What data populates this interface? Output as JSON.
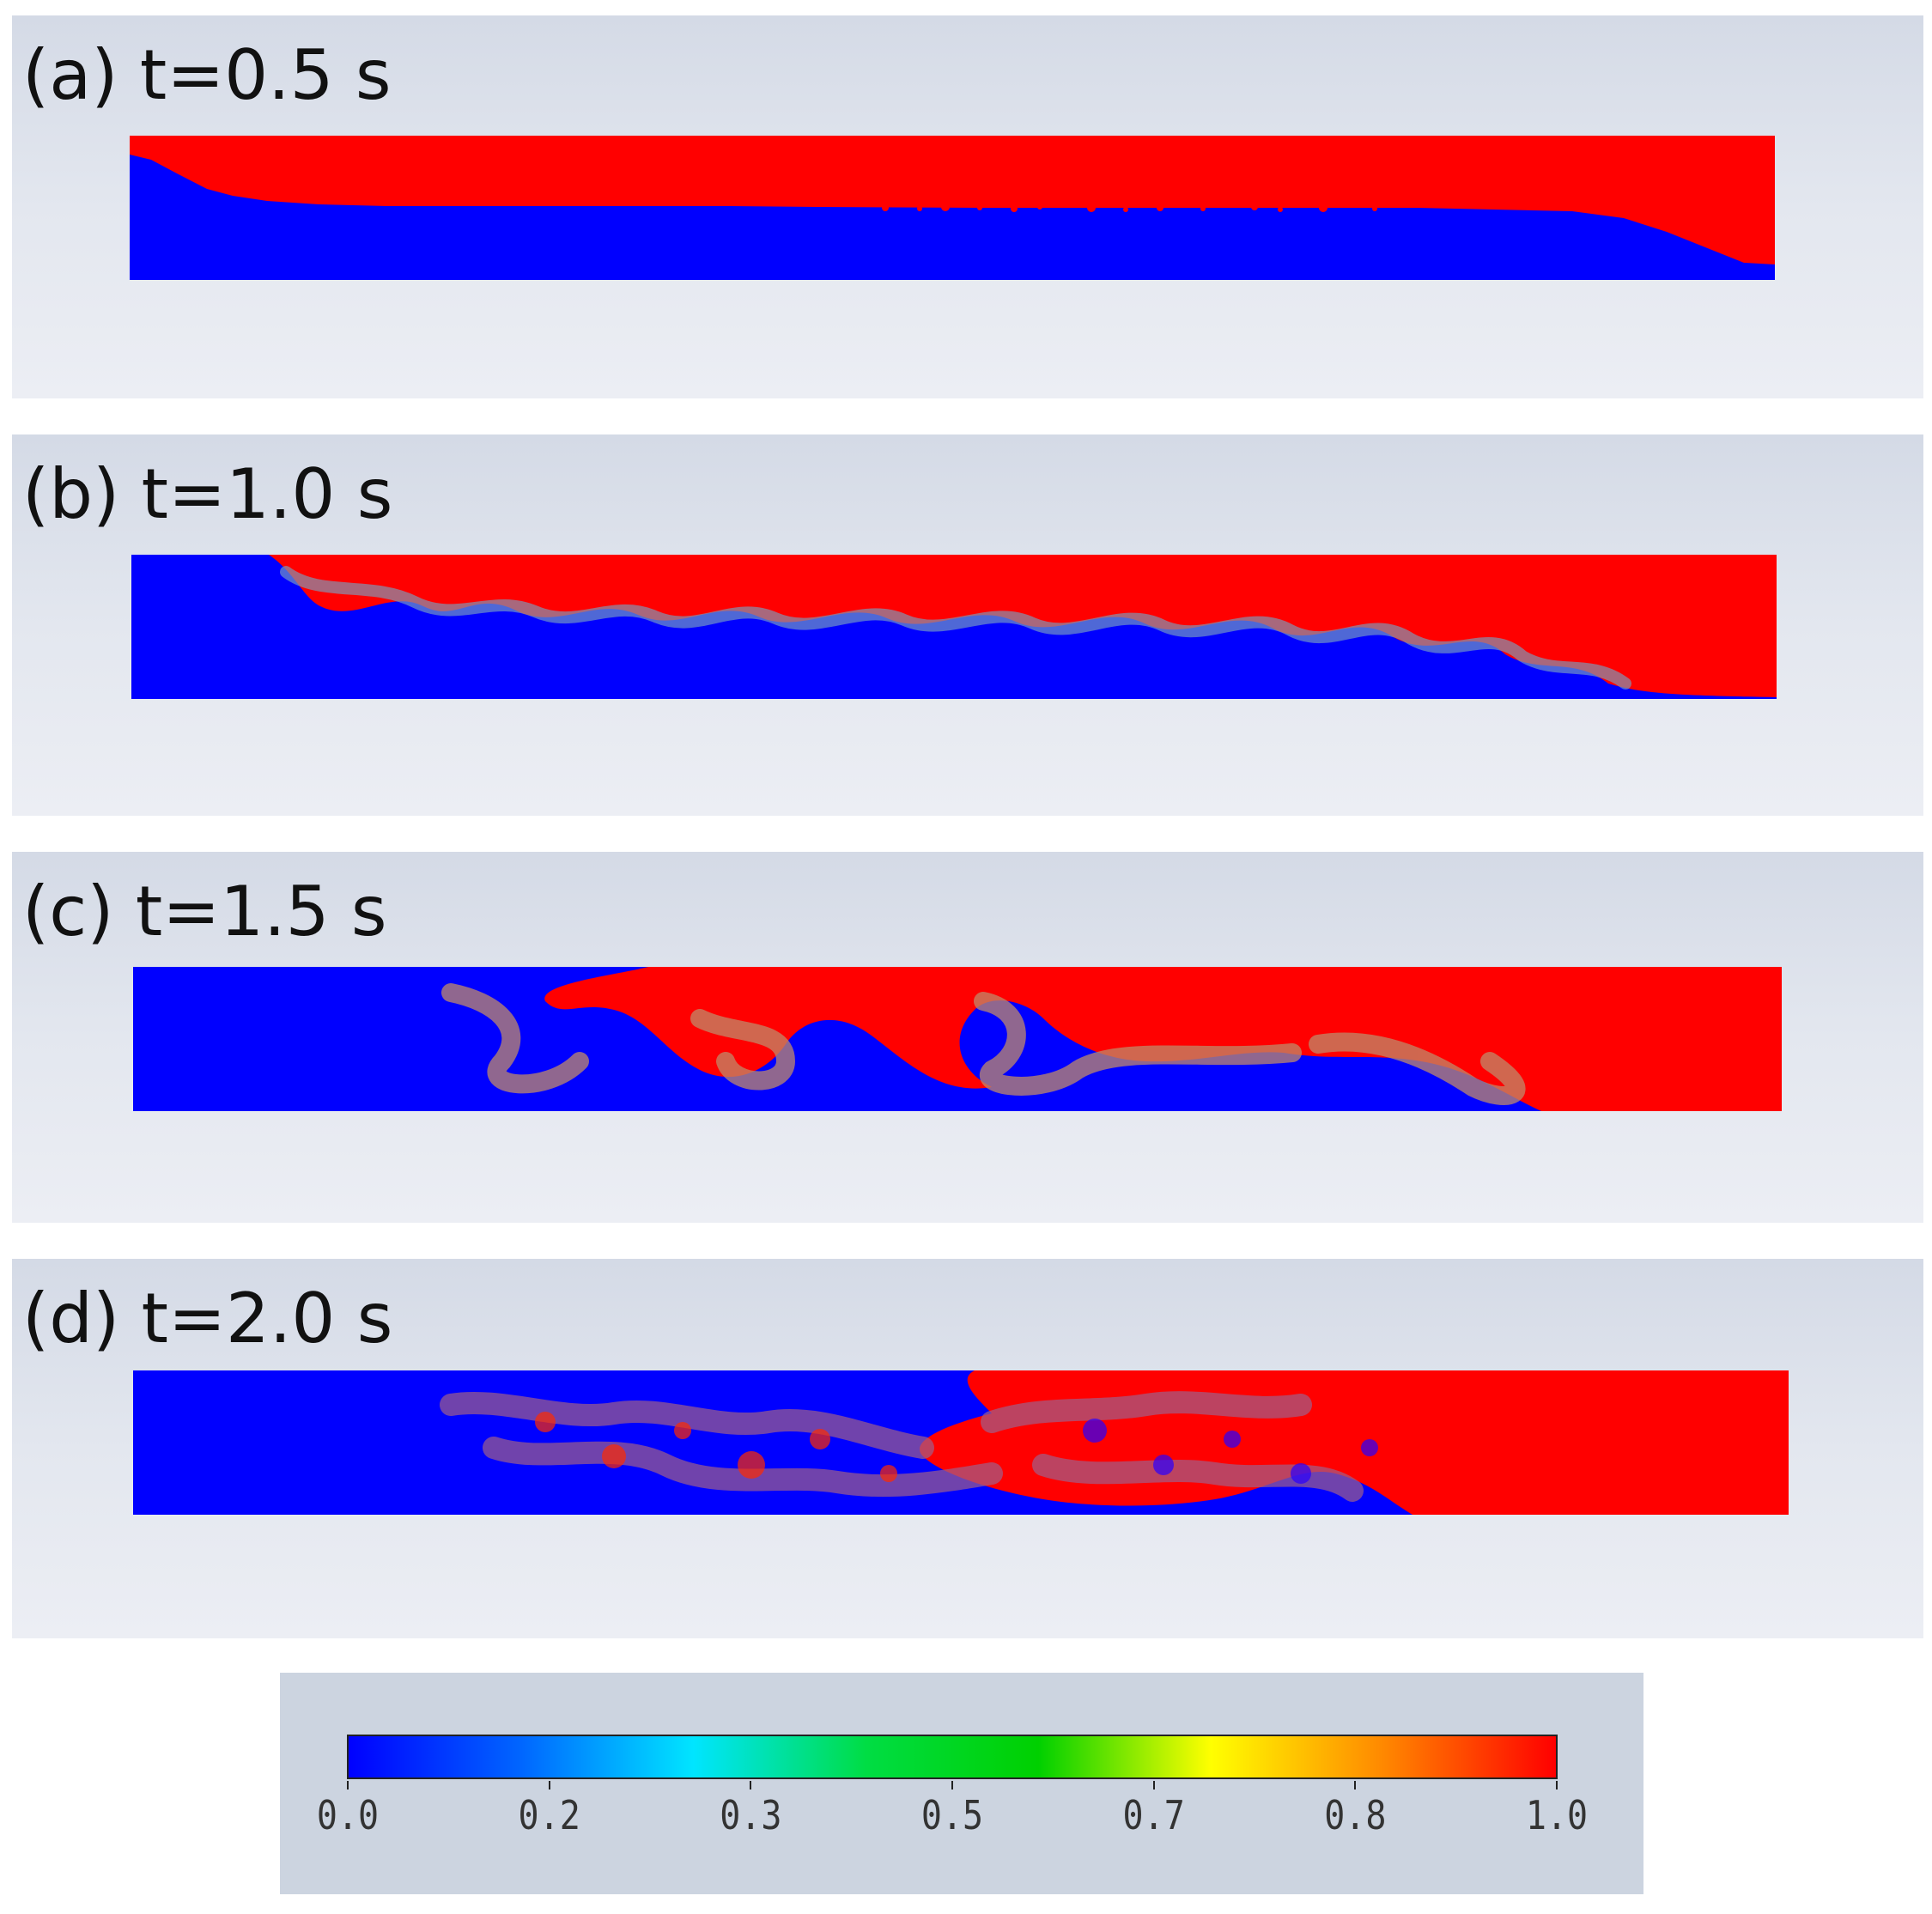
{
  "panels": [
    {
      "label": "(a) t=0.5 s"
    },
    {
      "label": "(b) t=1.0 s"
    },
    {
      "label": "(c) t=1.5 s"
    },
    {
      "label": "(d) t=2.0 s"
    }
  ],
  "colors": {
    "phase_low": "#0000ff",
    "phase_high": "#ff0000"
  },
  "colorbar": {
    "ticks": [
      "0.0",
      "0.2",
      "0.3",
      "0.5",
      "0.7",
      "0.8",
      "1.0"
    ],
    "stops": [
      "#0000ff",
      "#0066ff",
      "#00e5ff",
      "#00dd44",
      "#00d000",
      "#ffff00",
      "#ff8800",
      "#ff0000"
    ]
  }
}
